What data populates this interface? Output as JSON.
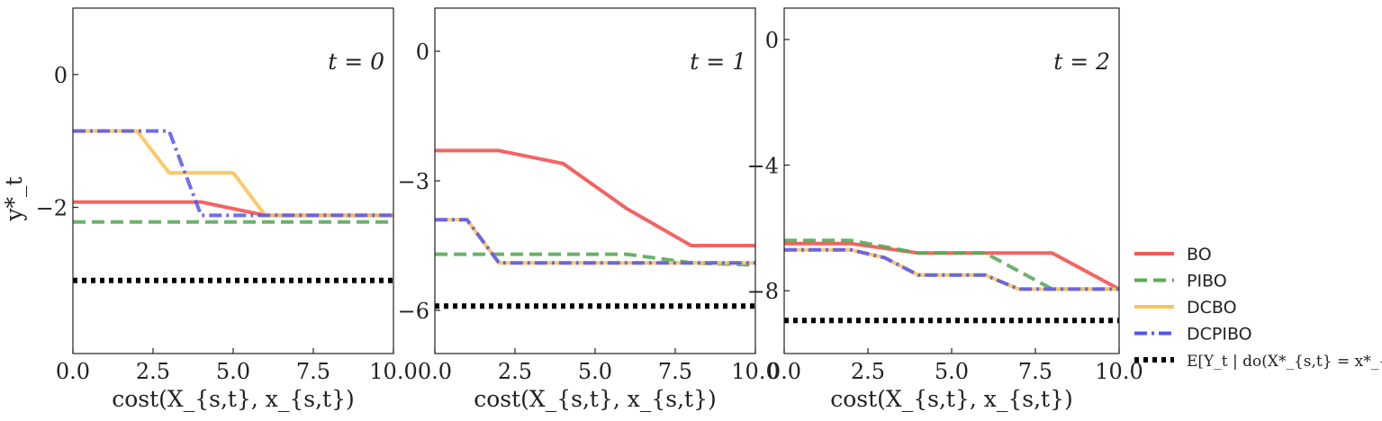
{
  "chart_data": [
    {
      "type": "line",
      "annotation": "t = 0",
      "xlabel": "cost(X_{s,t}, x_{s,t})",
      "ylabel": "y*_t",
      "xlim": [
        0,
        10
      ],
      "ylim": [
        -4.2,
        1.0
      ],
      "xticks": [
        0,
        2.5,
        5,
        7.5,
        10
      ],
      "xtick_labels": [
        "0.0",
        "2.5",
        "5.0",
        "7.5",
        "10.0"
      ],
      "yticks": [
        0,
        -2
      ],
      "ytick_labels": [
        "0",
        "−2"
      ],
      "series": [
        {
          "name": "BO",
          "x": [
            0,
            4,
            6,
            10
          ],
          "y": [
            -1.92,
            -1.92,
            -2.12,
            -2.12
          ]
        },
        {
          "name": "PIBO",
          "x": [
            0,
            10
          ],
          "y": [
            -2.22,
            -2.22
          ]
        },
        {
          "name": "DCBO",
          "x": [
            0,
            2,
            3,
            5,
            6,
            10
          ],
          "y": [
            -0.85,
            -0.85,
            -1.48,
            -1.48,
            -2.12,
            -2.12
          ]
        },
        {
          "name": "DCPIBO",
          "x": [
            0,
            3,
            4,
            10
          ],
          "y": [
            -0.85,
            -0.85,
            -2.12,
            -2.12
          ]
        },
        {
          "name": "E[Y_t | do(X*_{s,t} = x*_{s,t})]",
          "x": [
            0,
            10
          ],
          "y": [
            -3.1,
            -3.1
          ]
        }
      ]
    },
    {
      "type": "line",
      "annotation": "t = 1",
      "xlabel": "cost(X_{s,t}, x_{s,t})",
      "ylabel": "",
      "xlim": [
        0,
        10
      ],
      "ylim": [
        -7.0,
        1.0
      ],
      "xticks": [
        0,
        2.5,
        5,
        7.5,
        10
      ],
      "xtick_labels": [
        "0.0",
        "2.5",
        "5.0",
        "7.5",
        "10.0"
      ],
      "yticks": [
        0,
        -3,
        -6
      ],
      "ytick_labels": [
        "0",
        "−3",
        "−6"
      ],
      "series": [
        {
          "name": "BO",
          "x": [
            0,
            2,
            4,
            6,
            8,
            10
          ],
          "y": [
            -2.3,
            -2.3,
            -2.6,
            -3.65,
            -4.5,
            -4.5
          ]
        },
        {
          "name": "PIBO",
          "x": [
            0,
            6,
            8,
            10
          ],
          "y": [
            -4.7,
            -4.7,
            -4.9,
            -4.95
          ]
        },
        {
          "name": "DCBO",
          "x": [
            0,
            1,
            2,
            10
          ],
          "y": [
            -3.9,
            -3.9,
            -4.9,
            -4.9
          ]
        },
        {
          "name": "DCPIBO",
          "x": [
            0,
            1,
            2,
            10
          ],
          "y": [
            -3.9,
            -3.9,
            -4.9,
            -4.9
          ]
        },
        {
          "name": "E[Y_t | do(X*_{s,t} = x*_{s,t})]",
          "x": [
            0,
            10
          ],
          "y": [
            -5.9,
            -5.9
          ]
        }
      ]
    },
    {
      "type": "line",
      "annotation": "t = 2",
      "xlabel": "cost(X_{s,t}, x_{s,t})",
      "ylabel": "",
      "xlim": [
        0,
        10
      ],
      "ylim": [
        -10.0,
        1.0
      ],
      "xticks": [
        0,
        2.5,
        5,
        7.5,
        10
      ],
      "xtick_labels": [
        "0.0",
        "2.5",
        "5.0",
        "7.5",
        "10.0"
      ],
      "yticks": [
        0,
        -4,
        -8
      ],
      "ytick_labels": [
        "0",
        "−4",
        "−8"
      ],
      "series": [
        {
          "name": "BO",
          "x": [
            0,
            2,
            4,
            8,
            10
          ],
          "y": [
            -6.5,
            -6.5,
            -6.8,
            -6.8,
            -7.95
          ]
        },
        {
          "name": "PIBO",
          "x": [
            0,
            2,
            4,
            6,
            8,
            10
          ],
          "y": [
            -6.4,
            -6.4,
            -6.8,
            -6.8,
            -7.95,
            -7.95
          ]
        },
        {
          "name": "DCBO",
          "x": [
            0,
            2,
            3,
            4,
            6,
            7,
            10
          ],
          "y": [
            -6.7,
            -6.7,
            -6.95,
            -7.5,
            -7.5,
            -7.95,
            -7.95
          ]
        },
        {
          "name": "DCPIBO",
          "x": [
            0,
            2,
            3,
            4,
            6,
            7,
            10
          ],
          "y": [
            -6.7,
            -6.7,
            -6.95,
            -7.5,
            -7.5,
            -7.95,
            -7.95
          ]
        },
        {
          "name": "E[Y_t | do(X*_{s,t} = x*_{s,t})]",
          "x": [
            0,
            10
          ],
          "y": [
            -8.95,
            -8.95
          ]
        }
      ]
    }
  ],
  "legend": {
    "placement": "outside-right-bottom",
    "items": [
      {
        "label": "BO",
        "color": "#f55a5a",
        "style": "solid"
      },
      {
        "label": "PIBO",
        "color": "#5aaa5a",
        "style": "dashed"
      },
      {
        "label": "DCBO",
        "color": "#fcc357",
        "style": "solid"
      },
      {
        "label": "DCPIBO",
        "color": "#5555ee",
        "style": "dashdot"
      },
      {
        "label": "E[Y_t | do(X*_{s,t} = x*_{s,t})]",
        "color": "#000000",
        "style": "dotted"
      }
    ]
  }
}
